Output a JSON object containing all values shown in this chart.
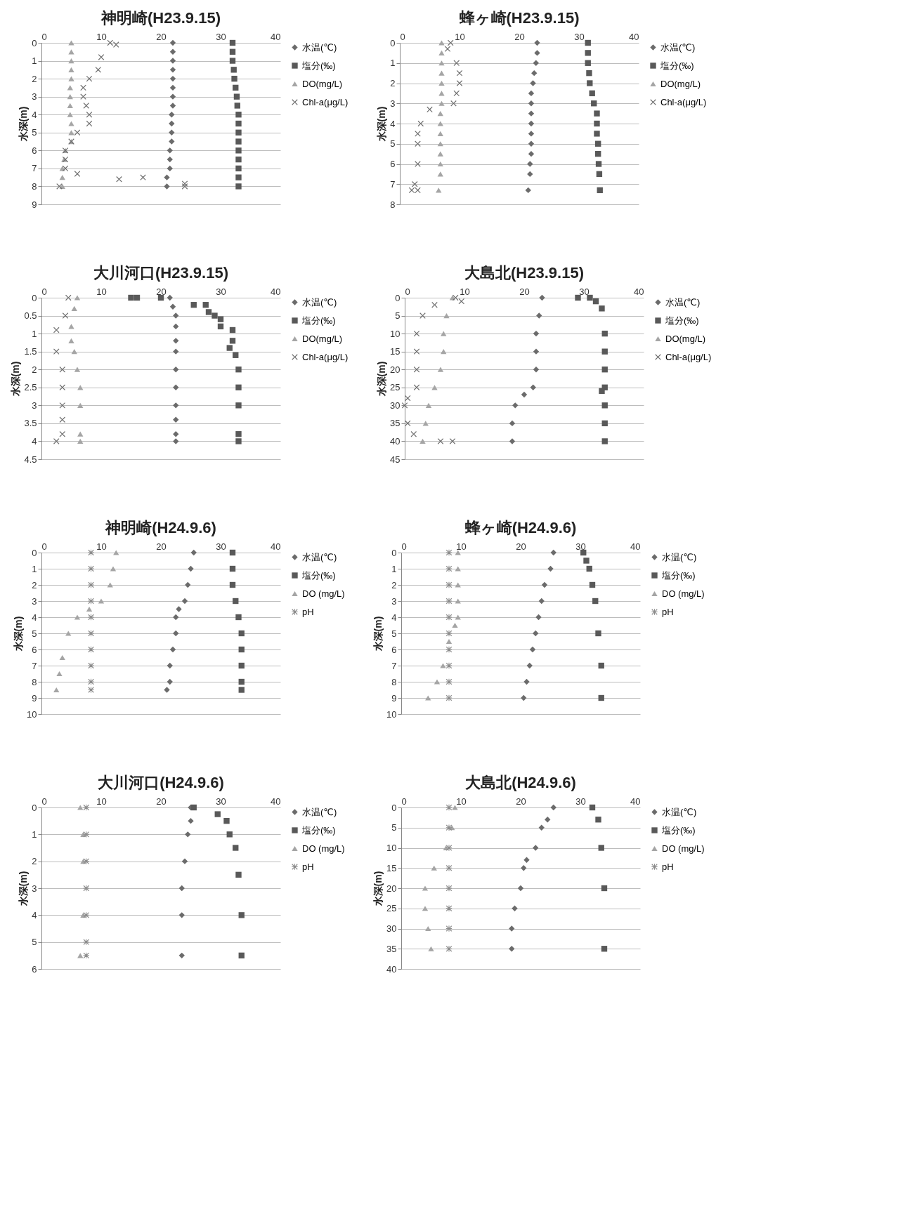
{
  "chart_data": [
    {
      "type": "scatter",
      "title": "神明崎(H23.9.15)",
      "ylabel": "水深(m)",
      "xlim": [
        0,
        40
      ],
      "xticks": [
        0,
        10,
        20,
        30,
        40
      ],
      "ylim": [
        9,
        0
      ],
      "yticks": [
        0,
        1,
        2,
        3,
        4,
        5,
        6,
        7,
        8,
        9
      ],
      "grid": "y",
      "legend": "right",
      "series": [
        {
          "name": "水温(℃)",
          "color": "#6b6b6b",
          "marker": "diamond",
          "x": [
            22,
            22,
            22,
            22,
            22,
            22,
            22,
            22,
            21.8,
            21.8,
            21.8,
            21.8,
            21.5,
            21.5,
            21.5,
            21,
            21
          ],
          "values": [
            0,
            0.5,
            1,
            1.5,
            2,
            2.5,
            3,
            3.5,
            4,
            4.5,
            5,
            5.5,
            6,
            6.5,
            7,
            7.5,
            8
          ]
        },
        {
          "name": "塩分(‰)",
          "color": "#595959",
          "marker": "square",
          "x": [
            32,
            32,
            32,
            32.2,
            32.3,
            32.5,
            32.7,
            32.8,
            33,
            33,
            33,
            33,
            33,
            33,
            33,
            33,
            33
          ],
          "values": [
            0,
            0.5,
            1,
            1.5,
            2,
            2.5,
            3,
            3.5,
            4,
            4.5,
            5,
            5.5,
            6,
            6.5,
            7,
            7.5,
            8
          ]
        },
        {
          "name": "DO(mg/L)",
          "color": "#a5a5a5",
          "marker": "triangle",
          "x": [
            5,
            5,
            5,
            5,
            5,
            4.8,
            4.8,
            4.8,
            4.8,
            5,
            5,
            5,
            4,
            3.8,
            3.5,
            3.5,
            3.5
          ],
          "values": [
            0,
            0.5,
            1,
            1.5,
            2,
            2.5,
            3,
            3.5,
            4,
            4.5,
            5,
            5.5,
            6,
            6.5,
            7,
            7.5,
            8
          ]
        },
        {
          "name": "Chl-a(μg/L)",
          "color": "#6e6e6e",
          "marker": "cross",
          "x": [
            11.5,
            12.5,
            10,
            9.5,
            8,
            7,
            7,
            7.5,
            8,
            8,
            6,
            5,
            4,
            4,
            4,
            6,
            13,
            17,
            24,
            24,
            3
          ],
          "values": [
            0,
            0.1,
            0.8,
            1.5,
            2,
            2.5,
            3,
            3.5,
            4,
            4.5,
            5,
            5.5,
            6,
            6.5,
            7,
            7.3,
            7.6,
            7.5,
            7.85,
            8,
            8
          ]
        }
      ]
    },
    {
      "type": "scatter",
      "title": "蜂ヶ崎(H23.9.15)",
      "ylabel": "水深(m)",
      "xlim": [
        0,
        40
      ],
      "xticks": [
        0,
        10,
        20,
        30,
        40
      ],
      "ylim": [
        8,
        0
      ],
      "yticks": [
        0,
        1,
        2,
        3,
        4,
        5,
        6,
        7,
        8
      ],
      "grid": "y",
      "legend": "right",
      "series": [
        {
          "name": "水温(℃)",
          "color": "#6b6b6b",
          "marker": "diamond",
          "x": [
            23,
            23,
            22.8,
            22.5,
            22.3,
            22,
            22,
            22,
            22,
            22,
            22,
            22,
            21.8,
            21.8,
            21.5
          ],
          "values": [
            0,
            0.5,
            1,
            1.5,
            2,
            2.5,
            3,
            3.5,
            4,
            4.5,
            5,
            5.5,
            6,
            6.5,
            7.3
          ]
        },
        {
          "name": "塩分(‰)",
          "color": "#595959",
          "marker": "square",
          "x": [
            31.5,
            31.5,
            31.5,
            31.7,
            31.8,
            32.2,
            32.5,
            33,
            33,
            33,
            33.2,
            33.2,
            33.3,
            33.4,
            33.5
          ],
          "values": [
            0,
            0.5,
            1,
            1.5,
            2,
            2.5,
            3,
            3.5,
            4,
            4.5,
            5,
            5.5,
            6,
            6.5,
            7.3
          ]
        },
        {
          "name": "DO(mg/L)",
          "color": "#a5a5a5",
          "marker": "triangle",
          "x": [
            7,
            7,
            7,
            7,
            7,
            7,
            7,
            6.8,
            6.8,
            6.8,
            6.8,
            6.8,
            6.8,
            6.8,
            6.5
          ],
          "values": [
            0,
            0.5,
            1,
            1.5,
            2,
            2.5,
            3,
            3.5,
            4,
            4.5,
            5,
            5.5,
            6,
            6.5,
            7.3
          ]
        },
        {
          "name": "Chl-a(μg/L)",
          "color": "#6e6e6e",
          "marker": "cross",
          "x": [
            8.5,
            8,
            9.5,
            10,
            10,
            9.5,
            9,
            5,
            3.5,
            3,
            3,
            3,
            2.5,
            2,
            3
          ],
          "values": [
            0,
            0.3,
            1,
            1.5,
            2,
            2.5,
            3,
            3.3,
            4,
            4.5,
            5,
            6,
            7,
            7.3,
            7.3
          ]
        }
      ]
    },
    {
      "type": "scatter",
      "title": "大川河口(H23.9.15)",
      "ylabel": "水深(m)",
      "xlim": [
        0,
        40
      ],
      "xticks": [
        0,
        10,
        20,
        30,
        40
      ],
      "ylim": [
        4.5,
        0
      ],
      "yticks": [
        0,
        0.5,
        1,
        1.5,
        2,
        2.5,
        3,
        3.5,
        4,
        4.5
      ],
      "grid": "y",
      "legend": "right",
      "series": [
        {
          "name": "水温(℃)",
          "color": "#6b6b6b",
          "marker": "diamond",
          "x": [
            21.5,
            22,
            22.5,
            22.5,
            22.5,
            22.5,
            22.5,
            22.5,
            22.5,
            22.5,
            22.5,
            22.5
          ],
          "values": [
            0,
            0.25,
            0.5,
            0.8,
            1.2,
            1.5,
            2,
            2.5,
            3,
            3.4,
            3.8,
            4
          ]
        },
        {
          "name": "塩分(‰)",
          "color": "#595959",
          "marker": "square",
          "x": [
            15,
            16,
            20,
            25.5,
            27.5,
            28,
            29,
            30,
            30,
            32,
            32,
            31.5,
            32.5,
            33,
            33,
            33,
            33,
            33
          ],
          "values": [
            0,
            0,
            0,
            0.2,
            0.2,
            0.4,
            0.5,
            0.6,
            0.8,
            0.9,
            1.2,
            1.4,
            1.6,
            2,
            2.5,
            3,
            3.8,
            4
          ]
        },
        {
          "name": "DO(mg/L)",
          "color": "#a5a5a5",
          "marker": "triangle",
          "x": [
            6,
            5.5,
            5,
            5,
            5.5,
            6,
            6.5,
            6.5,
            6.5,
            6.5
          ],
          "values": [
            0,
            0.3,
            0.8,
            1.2,
            1.5,
            2,
            2.5,
            3,
            3.8,
            4
          ]
        },
        {
          "name": "Chl-a(μg/L)",
          "color": "#6e6e6e",
          "marker": "cross",
          "x": [
            4.5,
            4,
            2.5,
            2.5,
            3.5,
            3.5,
            3.5,
            3.5,
            3.5,
            2.5
          ],
          "values": [
            0,
            0.5,
            0.9,
            1.5,
            2,
            2.5,
            3,
            3.4,
            3.8,
            4
          ]
        }
      ]
    },
    {
      "type": "scatter",
      "title": "大島北(H23.9.15)",
      "ylabel": "水深(m)",
      "xlim": [
        0,
        40
      ],
      "xticks": [
        0,
        10,
        20,
        30,
        40
      ],
      "ylim": [
        45,
        0
      ],
      "yticks": [
        0,
        5,
        10,
        15,
        20,
        25,
        30,
        35,
        40,
        45
      ],
      "grid": "y",
      "legend": "right",
      "series": [
        {
          "name": "水温(℃)",
          "color": "#6b6b6b",
          "marker": "diamond",
          "x": [
            23,
            22.5,
            22,
            22,
            22,
            21.5,
            20,
            18.5,
            18,
            18
          ],
          "values": [
            0,
            5,
            10,
            15,
            20,
            25,
            27,
            30,
            35,
            40
          ]
        },
        {
          "name": "塩分(‰)",
          "color": "#595959",
          "marker": "square",
          "x": [
            29,
            31,
            32,
            33,
            33.5,
            33.5,
            33.5,
            33.5,
            33,
            33.5,
            33.5,
            33.5
          ],
          "values": [
            0,
            0,
            1,
            3,
            10,
            15,
            20,
            25,
            26,
            30,
            35,
            40
          ]
        },
        {
          "name": "DO(mg/L)",
          "color": "#a5a5a5",
          "marker": "triangle",
          "x": [
            8,
            7,
            6.5,
            6.5,
            6,
            5,
            4,
            3.5,
            3
          ],
          "values": [
            0,
            5,
            10,
            15,
            20,
            25,
            30,
            35,
            40
          ]
        },
        {
          "name": "Chl-a(μg/L)",
          "color": "#6e6e6e",
          "marker": "cross",
          "x": [
            8.5,
            9.5,
            5,
            3,
            2,
            2,
            2,
            2,
            0.5,
            0,
            0.5,
            1.5,
            6,
            8
          ],
          "values": [
            0,
            1,
            2,
            5,
            10,
            15,
            20,
            25,
            28,
            30,
            35,
            38,
            40,
            40
          ]
        }
      ]
    },
    {
      "type": "scatter",
      "title": "神明崎(H24.9.6)",
      "ylabel": "水深(m)",
      "xlim": [
        0,
        40
      ],
      "xticks": [
        0,
        10,
        20,
        30,
        40
      ],
      "ylim": [
        10,
        0
      ],
      "yticks": [
        0,
        1,
        2,
        3,
        4,
        5,
        6,
        7,
        8,
        9,
        10
      ],
      "grid": "y",
      "legend": "right",
      "series": [
        {
          "name": "水温(℃)",
          "color": "#6b6b6b",
          "marker": "diamond",
          "x": [
            25.5,
            25,
            24.5,
            24,
            23,
            22.5,
            22.5,
            22,
            21.5,
            21.5,
            21
          ],
          "values": [
            0,
            1,
            2,
            3,
            3.5,
            4,
            5,
            6,
            7,
            8,
            8.5
          ]
        },
        {
          "name": "塩分(‰)",
          "color": "#595959",
          "marker": "square",
          "x": [
            32,
            32,
            32,
            32.5,
            33,
            33.5,
            33.5,
            33.5,
            33.5,
            33.5
          ],
          "values": [
            0,
            1,
            2,
            3,
            4,
            5,
            6,
            7,
            8,
            8.5
          ]
        },
        {
          "name": "DO (mg/L)",
          "color": "#a5a5a5",
          "marker": "triangle",
          "x": [
            12.5,
            12,
            11.5,
            10,
            8,
            6,
            4.5,
            3.5,
            3,
            2.5
          ],
          "values": [
            0,
            1,
            2,
            3,
            3.5,
            4,
            5,
            6.5,
            7.5,
            8.5
          ]
        },
        {
          "name": "pH",
          "color": "#8c8c8c",
          "marker": "star",
          "x": [
            8.3,
            8.3,
            8.3,
            8.3,
            8.3,
            8.3,
            8.3,
            8.3,
            8.3,
            8.3
          ],
          "values": [
            0,
            1,
            2,
            3,
            4,
            5,
            6,
            7,
            8,
            8.5
          ]
        }
      ]
    },
    {
      "type": "scatter",
      "title": "蜂ヶ崎(H24.9.6)",
      "ylabel": "水深(m)",
      "xlim": [
        0,
        40
      ],
      "xticks": [
        0,
        10,
        20,
        30,
        40
      ],
      "ylim": [
        10,
        0
      ],
      "yticks": [
        0,
        1,
        2,
        3,
        4,
        5,
        6,
        7,
        8,
        9,
        10
      ],
      "grid": "y",
      "legend": "right",
      "series": [
        {
          "name": "水温(℃)",
          "color": "#6b6b6b",
          "marker": "diamond",
          "x": [
            25.5,
            25,
            24,
            23.5,
            23,
            22.5,
            22,
            21.5,
            21,
            20.5
          ],
          "values": [
            0,
            1,
            2,
            3,
            4,
            5,
            6,
            7,
            8,
            9
          ]
        },
        {
          "name": "塩分(‰)",
          "color": "#595959",
          "marker": "square",
          "x": [
            30.5,
            31,
            31.5,
            32,
            32.5,
            33,
            33.5,
            33.5
          ],
          "values": [
            0,
            0.5,
            1,
            2,
            3,
            5,
            7,
            9
          ]
        },
        {
          "name": "DO (mg/L)",
          "color": "#a5a5a5",
          "marker": "triangle",
          "x": [
            9.5,
            9.5,
            9.5,
            9.5,
            9.5,
            9,
            8,
            7,
            6,
            4.5
          ],
          "values": [
            0,
            1,
            2,
            3,
            4,
            4.5,
            5.5,
            7,
            8,
            9
          ]
        },
        {
          "name": "pH",
          "color": "#8c8c8c",
          "marker": "star",
          "x": [
            8,
            8,
            8,
            8,
            8,
            8,
            8,
            8,
            8,
            8
          ],
          "values": [
            0,
            1,
            2,
            3,
            4,
            5,
            6,
            7,
            8,
            9
          ]
        }
      ]
    },
    {
      "type": "scatter",
      "title": "大川河口(H24.9.6)",
      "ylabel": "水深(m)",
      "xlim": [
        0,
        40
      ],
      "xticks": [
        0,
        10,
        20,
        30,
        40
      ],
      "ylim": [
        6,
        0
      ],
      "yticks": [
        0,
        1,
        2,
        3,
        4,
        5,
        6
      ],
      "grid": "y",
      "legend": "right",
      "series": [
        {
          "name": "水温(℃)",
          "color": "#6b6b6b",
          "marker": "diamond",
          "x": [
            25,
            25,
            24.5,
            24,
            23.5,
            23.5,
            23.5
          ],
          "values": [
            0,
            0.5,
            1,
            2,
            3,
            4,
            5.5
          ]
        },
        {
          "name": "塩分(‰)",
          "color": "#595959",
          "marker": "square",
          "x": [
            25.5,
            29.5,
            31,
            31.5,
            32.5,
            33,
            33.5,
            33.5
          ],
          "values": [
            0,
            0.25,
            0.5,
            1,
            1.5,
            2.5,
            4,
            5.5
          ]
        },
        {
          "name": "DO (mg/L)",
          "color": "#a5a5a5",
          "marker": "triangle",
          "x": [
            6.5,
            7,
            7,
            7,
            6.5
          ],
          "values": [
            0,
            1,
            2,
            4,
            5.5
          ]
        },
        {
          "name": "pH",
          "color": "#8c8c8c",
          "marker": "star",
          "x": [
            7.5,
            7.5,
            7.5,
            7.5,
            7.5,
            7.5,
            7.5
          ],
          "values": [
            0,
            1,
            2,
            3,
            4,
            5,
            5.5
          ]
        }
      ]
    },
    {
      "type": "scatter",
      "title": "大島北(H24.9.6)",
      "ylabel": "水深(m)",
      "xlim": [
        0,
        40
      ],
      "xticks": [
        0,
        10,
        20,
        30,
        40
      ],
      "ylim": [
        40,
        0
      ],
      "yticks": [
        0,
        5,
        10,
        15,
        20,
        25,
        30,
        35,
        40
      ],
      "grid": "y",
      "legend": "right",
      "series": [
        {
          "name": "水温(℃)",
          "color": "#6b6b6b",
          "marker": "diamond",
          "x": [
            25.5,
            24.5,
            23.5,
            22.5,
            21,
            20.5,
            20,
            19,
            18.5,
            18.5
          ],
          "values": [
            0,
            3,
            5,
            10,
            13,
            15,
            20,
            25,
            30,
            35
          ]
        },
        {
          "name": "塩分(‰)",
          "color": "#595959",
          "marker": "square",
          "x": [
            32,
            33,
            33.5,
            34,
            34
          ],
          "values": [
            0,
            3,
            10,
            20,
            35
          ]
        },
        {
          "name": "DO (mg/L)",
          "color": "#a5a5a5",
          "marker": "triangle",
          "x": [
            9,
            8.5,
            7.5,
            5.5,
            4,
            4,
            4.5,
            5
          ],
          "values": [
            0,
            5,
            10,
            15,
            20,
            25,
            30,
            35
          ]
        },
        {
          "name": "pH",
          "color": "#8c8c8c",
          "marker": "star",
          "x": [
            8,
            8,
            8,
            8,
            8,
            8,
            8,
            8
          ],
          "values": [
            0,
            5,
            10,
            15,
            20,
            25,
            30,
            35
          ]
        }
      ]
    }
  ]
}
